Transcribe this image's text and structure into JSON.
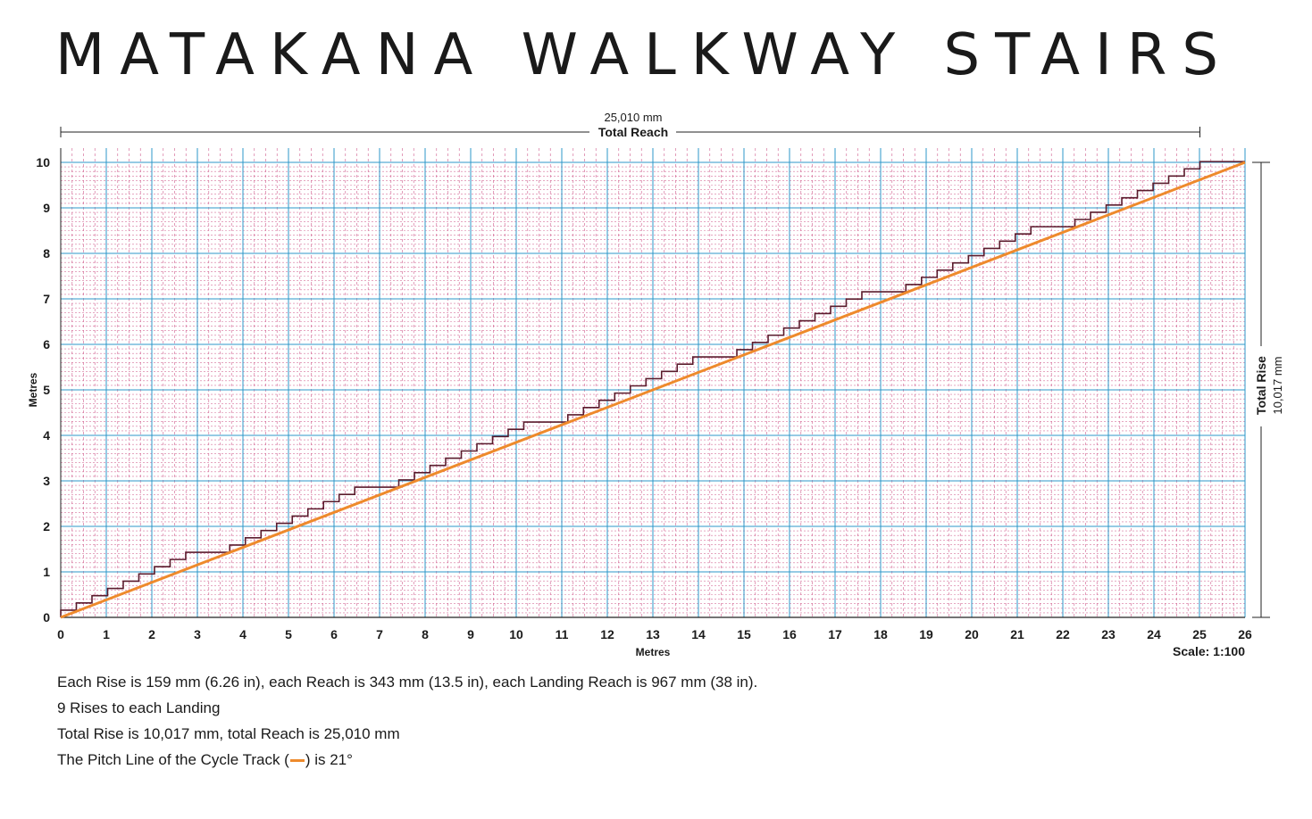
{
  "title": "MATAKANA WALKWAY STAIRS",
  "chart_data": {
    "type": "line",
    "title": "MATAKANA WALKWAY STAIRS",
    "xlabel": "Metres",
    "ylabel": "Metres",
    "xlim": [
      0,
      26
    ],
    "ylim": [
      0,
      10
    ],
    "x_ticks": [
      "0",
      "1",
      "2",
      "3",
      "4",
      "5",
      "6",
      "7",
      "8",
      "9",
      "10",
      "11",
      "12",
      "13",
      "14",
      "15",
      "16",
      "17",
      "18",
      "19",
      "20",
      "21",
      "22",
      "23",
      "24",
      "25",
      "26"
    ],
    "y_ticks": [
      "0",
      "1",
      "2",
      "3",
      "4",
      "5",
      "6",
      "7",
      "8",
      "9",
      "10"
    ],
    "grid": true,
    "scale_label": "Scale: 1:100",
    "total_reach": {
      "value": "25,010 mm",
      "label": "Total Reach"
    },
    "total_rise": {
      "value": "10,017 mm",
      "label": "Total Rise"
    },
    "stairs": {
      "rise_mm": 159,
      "reach_mm": 343,
      "landing_reach_mm": 967,
      "rises_per_landing": 9,
      "flights": 7,
      "total_reach_mm": 25010,
      "total_rise_mm": 10017,
      "color": "#5a1b2c"
    },
    "series": [
      {
        "name": "Cycle Track",
        "x": [
          0,
          26
        ],
        "y": [
          0,
          10.0
        ],
        "color": "#ee8a2c"
      }
    ],
    "colors": {
      "major_grid": "#2c97c9",
      "minor_grid": "#d05a8a",
      "axis": "#222222"
    }
  },
  "notes": [
    "Each Rise is 159 mm (6.26 in), each Reach is 343 mm (13.5 in), each Landing Reach is 967 mm (38 in).",
    "9 Rises to each Landing",
    "Total Rise is 10,017 mm, total Reach is 25,010 mm"
  ],
  "pitch_note": {
    "before": "The Pitch Line of the Cycle Track (",
    "after": ") is 21°"
  }
}
